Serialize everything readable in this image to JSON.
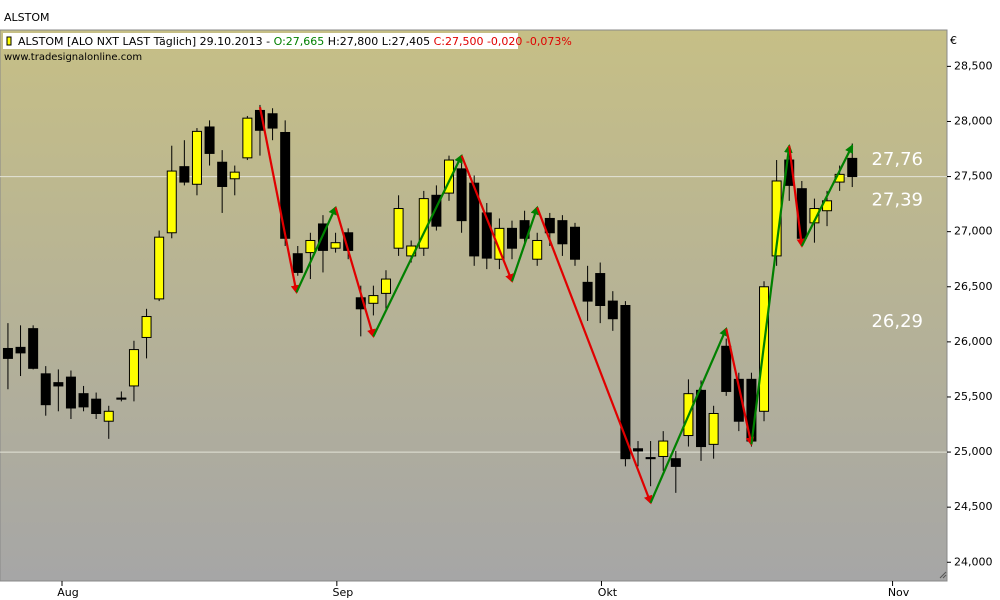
{
  "chart_data": {
    "type": "candlestick",
    "title": "ALSTOM",
    "legend": {
      "instrument": "ALSTOM [ALO NXT LAST Täglich] 29.10.2013 -",
      "open": "O:27,665",
      "high_low": "H:27,800 L:27,405",
      "close_change": "C:27,500 -0,020 -0,073%"
    },
    "source": "www.tradesignalonline.com",
    "currency": "€",
    "xlim": [
      -0.63,
      74.52
    ],
    "xticks": [
      {
        "value": 4.29,
        "label": "Aug"
      },
      {
        "value": 26.1,
        "label": "Sep"
      },
      {
        "value": 47.1,
        "label": "Okt"
      },
      {
        "value": 70.2,
        "label": "Nov"
      }
    ],
    "ylim": [
      23.83,
      28.83
    ],
    "yticks": [
      {
        "value": 24,
        "label": "24,000"
      },
      {
        "value": 24.5,
        "label": "24,500"
      },
      {
        "value": 25,
        "label": "25,000"
      },
      {
        "value": 25.5,
        "label": "25,500"
      },
      {
        "value": 26,
        "label": "26,000"
      },
      {
        "value": 26.5,
        "label": "26,500"
      },
      {
        "value": 27,
        "label": "27,000"
      },
      {
        "value": 27.5,
        "label": "27,500"
      },
      {
        "value": 28,
        "label": "28,000"
      },
      {
        "value": 28.5,
        "label": "28,500"
      }
    ],
    "grid_lines": [
      27.5,
      25
    ],
    "up_color": "#ffff00",
    "down_color": "#000000",
    "open": [
      25.94,
      25.95,
      26.12,
      25.71,
      25.63,
      25.68,
      25.53,
      25.48,
      25.28,
      25.49,
      25.6,
      26.04,
      26.39,
      26.99,
      27.59,
      27.43,
      27.95,
      27.63,
      27.48,
      27.67,
      28.1,
      28.07,
      27.9,
      26.8,
      26.81,
      27.07,
      26.85,
      26.99,
      26.4,
      26.35,
      26.44,
      26.85,
      26.78,
      26.85,
      27.33,
      27.35,
      27.57,
      27.44,
      27.17,
      26.75,
      27.03,
      27.1,
      26.75,
      27.12,
      27.1,
      27.04,
      26.54,
      26.62,
      26.37,
      26.33,
      25.03,
      24.95,
      24.96,
      24.94,
      25.15,
      25.56,
      25.07,
      25.96,
      25.66,
      25.66,
      25.37,
      26.78,
      27.65,
      27.39,
      27.08,
      27.19,
      27.45,
      27.665
    ],
    "high": [
      26.17,
      26.15,
      26.15,
      25.78,
      25.75,
      25.74,
      25.6,
      25.54,
      25.42,
      25.55,
      26.01,
      26.3,
      27.01,
      27.78,
      27.83,
      27.94,
      28.01,
      27.74,
      27.6,
      28.05,
      28.15,
      28.12,
      28.01,
      26.87,
      26.99,
      27.15,
      26.99,
      27.03,
      26.51,
      26.51,
      26.65,
      27.33,
      26.92,
      27.37,
      27.42,
      27.69,
      27.65,
      27.51,
      27.26,
      27.12,
      27.1,
      27.19,
      26.99,
      27.17,
      27.15,
      27.08,
      26.69,
      26.72,
      26.46,
      26.37,
      25.1,
      25.1,
      25.19,
      25.01,
      25.66,
      25.65,
      25.42,
      26.03,
      25.72,
      25.72,
      26.55,
      27.65,
      27.74,
      27.46,
      27.3,
      27.37,
      27.6,
      27.8
    ],
    "low": [
      25.57,
      25.69,
      25.75,
      25.33,
      25.37,
      25.3,
      25.37,
      25.3,
      25.12,
      25.46,
      25.46,
      25.85,
      26.37,
      26.94,
      27.42,
      27.33,
      27.6,
      27.17,
      27.33,
      27.65,
      27.69,
      27.83,
      26.87,
      26.6,
      26.57,
      26.63,
      26.81,
      26.75,
      26.05,
      26.24,
      26.28,
      26.78,
      26.72,
      26.78,
      27.01,
      27.28,
      26.99,
      26.69,
      26.66,
      26.66,
      26.75,
      26.87,
      26.69,
      26.87,
      26.78,
      26.69,
      26.19,
      26.17,
      26.1,
      24.87,
      24.87,
      24.69,
      24.83,
      24.63,
      25.05,
      24.92,
      24.94,
      25.51,
      25.19,
      25.05,
      25.28,
      26.69,
      27.28,
      26.87,
      26.9,
      27.05,
      27.37,
      27.405
    ],
    "close": [
      25.85,
      25.9,
      25.76,
      25.43,
      25.6,
      25.4,
      25.41,
      25.35,
      25.37,
      25.48,
      25.93,
      26.23,
      26.95,
      27.55,
      27.45,
      27.91,
      27.71,
      27.41,
      27.54,
      28.03,
      27.92,
      27.94,
      26.94,
      26.63,
      26.92,
      26.83,
      26.9,
      26.83,
      26.3,
      26.42,
      26.57,
      27.21,
      26.87,
      27.3,
      27.05,
      27.65,
      27.1,
      26.78,
      26.76,
      27.03,
      26.85,
      26.94,
      26.92,
      26.99,
      26.89,
      26.75,
      26.37,
      26.33,
      26.21,
      24.94,
      25.01,
      24.94,
      25.1,
      24.87,
      25.53,
      25.05,
      25.35,
      25.55,
      25.28,
      25.1,
      26.5,
      27.46,
      27.42,
      26.94,
      27.21,
      27.28,
      27.52,
      27.5
    ],
    "zigzag": {
      "x": [
        20,
        22.9,
        26,
        29,
        36,
        40,
        42,
        51,
        57,
        59,
        62,
        63,
        67
      ],
      "values": [
        28.13,
        26.45,
        27.22,
        26.05,
        27.69,
        26.55,
        27.22,
        24.54,
        26.12,
        25.07,
        27.78,
        26.87,
        27.78
      ],
      "up_color": "#008000",
      "down_color": "#e00000"
    },
    "annotations": [
      {
        "value": 27.76,
        "label": "27,76"
      },
      {
        "value": 27.39,
        "label": "27,39"
      },
      {
        "value": 26.29,
        "label": "26,29"
      }
    ]
  }
}
